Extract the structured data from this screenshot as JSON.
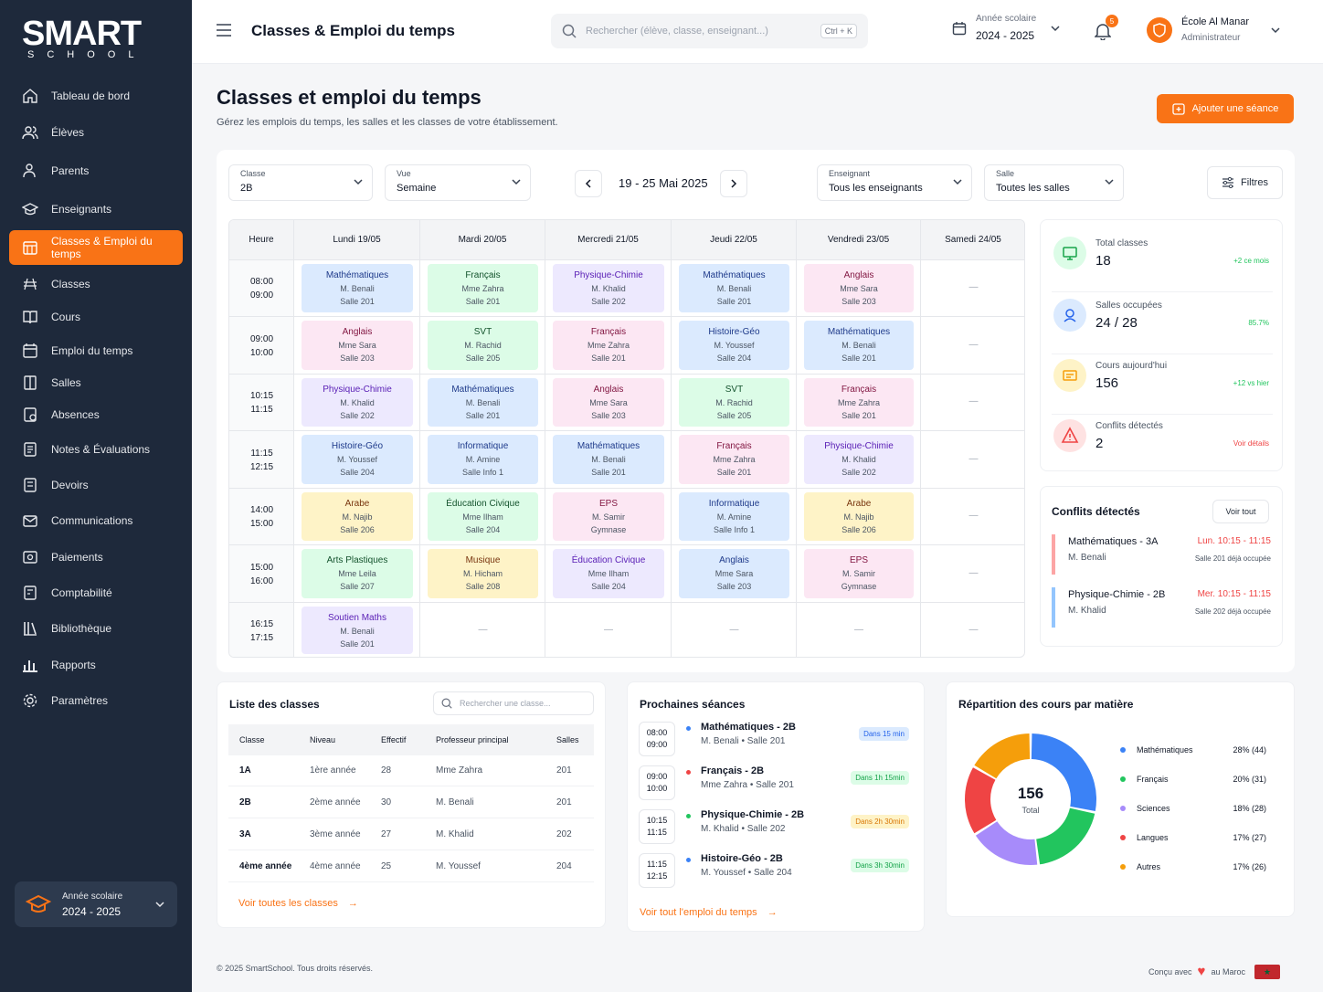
{
  "brand": {
    "name": "SMART",
    "sub": "SCHOOL"
  },
  "sidebar": {
    "items": [
      {
        "label": "Tableau de bord",
        "icon": "home-icon"
      },
      {
        "label": "Élèves",
        "icon": "users-icon"
      },
      {
        "label": "Parents",
        "icon": "user-parent-icon"
      },
      {
        "label": "Enseignants",
        "icon": "graduation-cap-icon"
      },
      {
        "label": "Classes & Emploi du temps",
        "icon": "calendar-grid-icon"
      },
      {
        "label": "Classes",
        "icon": "class-icon"
      },
      {
        "label": "Cours",
        "icon": "book-icon"
      },
      {
        "label": "Emploi du temps",
        "icon": "calendar-icon"
      },
      {
        "label": "Salles",
        "icon": "door-icon"
      },
      {
        "label": "Absences",
        "icon": "absence-icon"
      },
      {
        "label": "Notes & Évaluations",
        "icon": "notes-icon"
      },
      {
        "label": "Devoirs",
        "icon": "homework-icon"
      },
      {
        "label": "Communications",
        "icon": "mail-icon"
      },
      {
        "label": "Paiements",
        "icon": "payment-icon"
      },
      {
        "label": "Comptabilité",
        "icon": "accounting-icon"
      },
      {
        "label": "Bibliothèque",
        "icon": "library-icon"
      },
      {
        "label": "Rapports",
        "icon": "chart-icon"
      },
      {
        "label": "Paramètres",
        "icon": "gear-icon"
      }
    ],
    "year_label": "Année scolaire",
    "year_value": "2024 - 2025"
  },
  "header": {
    "title": "Classes & Emploi du temps",
    "search_placeholder": "Rechercher (élève, classe, enseignant...)",
    "shortcut": "Ctrl + K",
    "year_label": "Année scolaire",
    "year_value": "2024 - 2025",
    "notif_count": "5",
    "school_name": "École Al Manar",
    "school_role": "Administrateur"
  },
  "page": {
    "title": "Classes et emploi du temps",
    "subtitle": "Gérez les emplois du temps, les salles et les classes de votre établissement.",
    "add_button": "Ajouter une séance"
  },
  "filters": {
    "class_label": "Classe",
    "class_value": "2B",
    "view_label": "Vue",
    "view_value": "Semaine",
    "week": "19 - 25 Mai 2025",
    "teacher_label": "Enseignant",
    "teacher_value": "Tous les enseignants",
    "room_label": "Salle",
    "room_value": "Toutes les salles",
    "filters_button": "Filtres"
  },
  "timetable": {
    "hour_header": "Heure",
    "days": [
      "Lundi 19/05",
      "Mardi 20/05",
      "Mercredi 21/05",
      "Jeudi 22/05",
      "Vendredi 23/05",
      "Samedi 24/05"
    ],
    "slots": [
      {
        "start": "08:00",
        "end": "09:00"
      },
      {
        "start": "09:00",
        "end": "10:00"
      },
      {
        "start": "10:15",
        "end": "11:15"
      },
      {
        "start": "11:15",
        "end": "12:15"
      },
      {
        "start": "14:00",
        "end": "15:00"
      },
      {
        "start": "15:00",
        "end": "16:00"
      },
      {
        "start": "16:15",
        "end": "17:15"
      }
    ],
    "empty": "—",
    "sessions": [
      [
        {
          "subject": "Mathématiques",
          "teacher": "M. Benali",
          "room": "Salle 201",
          "color": "math"
        },
        {
          "subject": "Français",
          "teacher": "Mme Zahra",
          "room": "Salle 201",
          "color": "fr"
        },
        {
          "subject": "Physique-Chimie",
          "teacher": "M. Khalid",
          "room": "Salle 202",
          "color": "pc"
        },
        {
          "subject": "Mathématiques",
          "teacher": "M. Benali",
          "room": "Salle 201",
          "color": "math"
        },
        {
          "subject": "Anglais",
          "teacher": "Mme Sara",
          "room": "Salle 203",
          "color": "ang"
        },
        null
      ],
      [
        {
          "subject": "Anglais",
          "teacher": "Mme Sara",
          "room": "Salle 203",
          "color": "ang"
        },
        {
          "subject": "SVT",
          "teacher": "M. Rachid",
          "room": "Salle 205",
          "color": "fr"
        },
        {
          "subject": "Français",
          "teacher": "Mme Zahra",
          "room": "Salle 201",
          "color": "ang"
        },
        {
          "subject": "Histoire-Géo",
          "teacher": "M. Youssef",
          "room": "Salle 204",
          "color": "math"
        },
        {
          "subject": "Mathématiques",
          "teacher": "M. Benali",
          "room": "Salle 201",
          "color": "math"
        },
        null
      ],
      [
        {
          "subject": "Physique-Chimie",
          "teacher": "M. Khalid",
          "room": "Salle 202",
          "color": "pc"
        },
        {
          "subject": "Mathématiques",
          "teacher": "M. Benali",
          "room": "Salle 201",
          "color": "math"
        },
        {
          "subject": "Anglais",
          "teacher": "Mme Sara",
          "room": "Salle 203",
          "color": "ang"
        },
        {
          "subject": "SVT",
          "teacher": "M. Rachid",
          "room": "Salle 205",
          "color": "fr"
        },
        {
          "subject": "Français",
          "teacher": "Mme Zahra",
          "room": "Salle 201",
          "color": "ang"
        },
        null
      ],
      [
        {
          "subject": "Histoire-Géo",
          "teacher": "M. Youssef",
          "room": "Salle 204",
          "color": "math"
        },
        {
          "subject": "Informatique",
          "teacher": "M. Amine",
          "room": "Salle Info 1",
          "color": "math"
        },
        {
          "subject": "Mathématiques",
          "teacher": "M. Benali",
          "room": "Salle 201",
          "color": "math"
        },
        {
          "subject": "Français",
          "teacher": "Mme Zahra",
          "room": "Salle 201",
          "color": "ang"
        },
        {
          "subject": "Physique-Chimie",
          "teacher": "M. Khalid",
          "room": "Salle 202",
          "color": "pc"
        },
        null
      ],
      [
        {
          "subject": "Arabe",
          "teacher": "M. Najib",
          "room": "Salle 206",
          "color": "ar"
        },
        {
          "subject": "Éducation Civique",
          "teacher": "Mme Ilham",
          "room": "Salle 204",
          "color": "fr"
        },
        {
          "subject": "EPS",
          "teacher": "M. Samir",
          "room": "Gymnase",
          "color": "ang"
        },
        {
          "subject": "Informatique",
          "teacher": "M. Amine",
          "room": "Salle Info 1",
          "color": "math"
        },
        {
          "subject": "Arabe",
          "teacher": "M. Najib",
          "room": "Salle 206",
          "color": "ar"
        },
        null
      ],
      [
        {
          "subject": "Arts Plastiques",
          "teacher": "Mme Leila",
          "room": "Salle 207",
          "color": "fr"
        },
        {
          "subject": "Musique",
          "teacher": "M. Hicham",
          "room": "Salle 208",
          "color": "ar"
        },
        {
          "subject": "Éducation Civique",
          "teacher": "Mme Ilham",
          "room": "Salle 204",
          "color": "pc"
        },
        {
          "subject": "Anglais",
          "teacher": "Mme Sara",
          "room": "Salle 203",
          "color": "math"
        },
        {
          "subject": "EPS",
          "teacher": "M. Samir",
          "room": "Gymnase",
          "color": "ang"
        },
        null
      ],
      [
        {
          "subject": "Soutien Maths",
          "teacher": "M. Benali",
          "room": "Salle 201",
          "color": "pc"
        },
        null,
        null,
        null,
        null,
        null
      ]
    ]
  },
  "colors": {
    "math": {
      "bg": "#dbeafe",
      "fg": "#1e3a8a"
    },
    "fr": {
      "bg": "#dcfce7",
      "fg": "#14532d"
    },
    "pc": {
      "bg": "#ede9fe",
      "fg": "#5b21b6"
    },
    "ang": {
      "bg": "#fce7f3",
      "fg": "#831843"
    },
    "ar": {
      "bg": "#fef3c7",
      "fg": "#78350f"
    },
    "accent": "#f97316"
  },
  "stats": [
    {
      "label": "Total classes",
      "value": "18",
      "trend": "+2 ce mois",
      "icon": "classes-stat-icon",
      "tone": "green"
    },
    {
      "label": "Salles occupées",
      "value": "24 / 28",
      "trend": "85.7%",
      "icon": "room-stat-icon",
      "tone": "blue"
    },
    {
      "label": "Cours aujourd'hui",
      "value": "156",
      "trend": "+12 vs hier",
      "icon": "courses-stat-icon",
      "tone": "yellow"
    },
    {
      "label": "Conflits détectés",
      "value": "2",
      "trend": "Voir détails",
      "icon": "warning-icon",
      "tone": "red"
    }
  ],
  "conflicts": {
    "title": "Conflits détectés",
    "view_all": "Voir tout",
    "items": [
      {
        "subject": "Mathématiques - 3A",
        "teacher": "M. Benali",
        "time": "Lun. 10:15 - 11:15",
        "note": "Salle 201 déjà occupée"
      },
      {
        "subject": "Physique-Chimie - 2B",
        "teacher": "M. Khalid",
        "time": "Mer. 10:15 - 11:15",
        "note": "Salle 202 déjà occupée"
      }
    ]
  },
  "class_list": {
    "title": "Liste des classes",
    "search_placeholder": "Rechercher une classe...",
    "headers": [
      "Classe",
      "Niveau",
      "Effectif",
      "Professeur principal",
      "Salles"
    ],
    "rows": [
      [
        "1A",
        "1ère année",
        "28",
        "Mme Zahra",
        "201"
      ],
      [
        "2B",
        "2ème année",
        "30",
        "M. Benali",
        "201"
      ],
      [
        "3A",
        "3ème année",
        "27",
        "M. Khalid",
        "202"
      ],
      [
        "4ème année",
        "4ème année",
        "25",
        "M. Youssef",
        "204"
      ]
    ],
    "link": "Voir toutes les classes"
  },
  "upcoming": {
    "title": "Prochaines séances",
    "items": [
      {
        "start": "08:00",
        "end": "09:00",
        "name": "Mathématiques - 2B",
        "meta": "M. Benali • Salle 201",
        "badge": "Dans 15 min",
        "tone": "blue"
      },
      {
        "start": "09:00",
        "end": "10:00",
        "name": "Français - 2B",
        "meta": "Mme Zahra • Salle 201",
        "badge": "Dans 1h 15min",
        "tone": "green"
      },
      {
        "start": "10:15",
        "end": "11:15",
        "name": "Physique-Chimie - 2B",
        "meta": "M. Khalid • Salle 202",
        "badge": "Dans 2h 30min",
        "tone": "yellow"
      },
      {
        "start": "11:15",
        "end": "12:15",
        "name": "Histoire-Géo - 2B",
        "meta": "M. Youssef • Salle 204",
        "badge": "Dans 3h 30min",
        "tone": "green"
      }
    ],
    "link": "Voir tout l'emploi du temps"
  },
  "chart_data": {
    "type": "pie",
    "title": "Répartition des cours par matière",
    "center_value": "156",
    "center_label": "Total",
    "categories": [
      "Mathématiques",
      "Français",
      "Sciences",
      "Langues",
      "Autres"
    ],
    "values": [
      44,
      31,
      28,
      27,
      26
    ],
    "percents": [
      "28% (44)",
      "20% (31)",
      "18% (28)",
      "17% (27)",
      "17% (26)"
    ],
    "colors": [
      "#3b82f6",
      "#22c55e",
      "#a78bfa",
      "#ef4444",
      "#f59e0b"
    ],
    "legend": "right"
  },
  "footer": {
    "copyright": "© 2025 SmartSchool. Tous droits réservés.",
    "made_with": "Conçu avec",
    "made_in": "au Maroc"
  }
}
